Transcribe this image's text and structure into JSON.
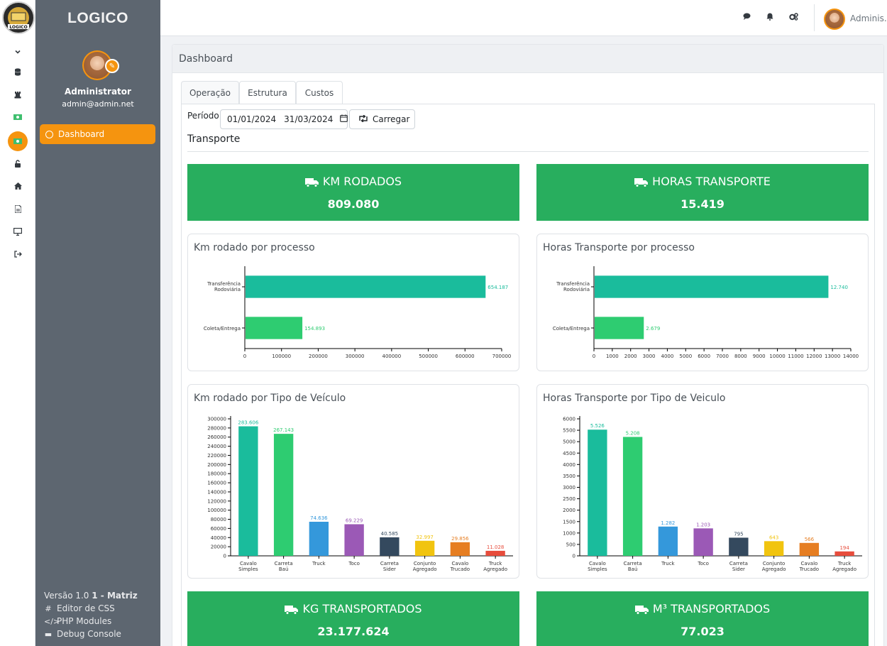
{
  "app": {
    "brand": "LOGICO",
    "logo_text": "LOGICO"
  },
  "user": {
    "name": "Administrator",
    "email": "admin@admin.net",
    "short": "Adminis..."
  },
  "sidebar": {
    "nav": [
      {
        "label": "Dashboard",
        "active": true
      }
    ],
    "footer": {
      "version_prefix": "Versão 1.0",
      "version_bold": "1 - Matriz",
      "links": [
        "Editor de CSS",
        "PHP Modules",
        "Debug Console"
      ]
    }
  },
  "rail": {
    "icons": [
      "chevron-down-icon",
      "database-icon",
      "chess-rook-icon",
      "money-icon",
      "money-active-icon",
      "unlock-icon",
      "home-icon",
      "file-icon",
      "monitor-icon",
      "sign-out-icon"
    ]
  },
  "topbar": {
    "icons": [
      "comment-icon",
      "bell-icon",
      "cogs-icon"
    ]
  },
  "page": {
    "title": "Dashboard",
    "tabs": [
      "Operação",
      "Estrutura",
      "Custos"
    ],
    "active_tab": "Operação",
    "period": {
      "label": "Período:",
      "from": "01/01/2024",
      "to": "31/03/2024",
      "button": "Carregar"
    },
    "section": "Transporte"
  },
  "kpis": [
    {
      "title": "KM RODADOS",
      "value": "809.080"
    },
    {
      "title": "HORAS TRANSPORTE",
      "value": "15.419"
    },
    {
      "title": "KG TRANSPORTADOS",
      "value": "23.177.624"
    },
    {
      "title": "M³ TRANSPORTADOS",
      "value": "77.023"
    }
  ],
  "colors": {
    "kpi": "#28ae5e",
    "accent": "#f5940f",
    "sidebar": "#5d6670"
  },
  "chart_data": [
    {
      "type": "bar",
      "orientation": "horizontal",
      "title": "Km rodado por processo",
      "categories": [
        "Transferência Rodoviária",
        "Coleta/Entrega"
      ],
      "values": [
        654187,
        154893
      ],
      "labels": [
        "654.187",
        "154.893"
      ],
      "xlim": [
        0,
        700000
      ],
      "ticks": [
        0,
        100000,
        200000,
        300000,
        400000,
        500000,
        600000,
        700000
      ],
      "colors": [
        "#1abc9c",
        "#2ecc71"
      ]
    },
    {
      "type": "bar",
      "orientation": "horizontal",
      "title": "Horas Transporte por processo",
      "categories": [
        "Transferência Rodoviária",
        "Coleta/Entrega"
      ],
      "values": [
        12740,
        2679
      ],
      "labels": [
        "12.740",
        "2.679"
      ],
      "xlim": [
        0,
        14000
      ],
      "ticks": [
        0,
        1000,
        2000,
        3000,
        4000,
        5000,
        6000,
        7000,
        8000,
        9000,
        10000,
        11000,
        12000,
        13000,
        14000
      ],
      "colors": [
        "#1abc9c",
        "#2ecc71"
      ]
    },
    {
      "type": "bar",
      "title": "Km rodado por Tipo de Veículo",
      "categories": [
        "Cavalo Simples",
        "Carreta Baú",
        "Truck",
        "Toco",
        "Carreta Sider",
        "Conjunto Agregado",
        "Cavalo Trucado",
        "Truck Agregado"
      ],
      "values": [
        283606,
        267143,
        74636,
        69229,
        40585,
        32997,
        29856,
        11028
      ],
      "labels": [
        "283.606",
        "267.143",
        "74.636",
        "69.229",
        "40.585",
        "32.997",
        "29.856",
        "11.028"
      ],
      "ylim": [
        0,
        300000
      ],
      "ticks": [
        0,
        20000,
        40000,
        60000,
        80000,
        100000,
        120000,
        140000,
        160000,
        180000,
        200000,
        220000,
        240000,
        260000,
        280000,
        300000
      ],
      "colors": [
        "#1abc9c",
        "#2ecc71",
        "#3498db",
        "#9b59b6",
        "#34495e",
        "#f1c40f",
        "#e67e22",
        "#e74c3c"
      ]
    },
    {
      "type": "bar",
      "title": "Horas Transporte por Tipo de Veiculo",
      "categories": [
        "Cavalo Simples",
        "Carreta Baú",
        "Truck",
        "Toco",
        "Carreta Sider",
        "Conjunto Agregado",
        "Cavalo Trucado",
        "Truck Agregado"
      ],
      "values": [
        5526,
        5208,
        1282,
        1203,
        795,
        643,
        566,
        194
      ],
      "labels": [
        "5.526",
        "5.208",
        "1.282",
        "1.203",
        "795",
        "643",
        "566",
        "194"
      ],
      "ylim": [
        0,
        6000
      ],
      "ticks": [
        0,
        500,
        1000,
        1500,
        2000,
        2500,
        3000,
        3500,
        4000,
        4500,
        5000,
        5500,
        6000
      ],
      "colors": [
        "#1abc9c",
        "#2ecc71",
        "#3498db",
        "#9b59b6",
        "#34495e",
        "#f1c40f",
        "#e67e22",
        "#e74c3c"
      ]
    }
  ]
}
